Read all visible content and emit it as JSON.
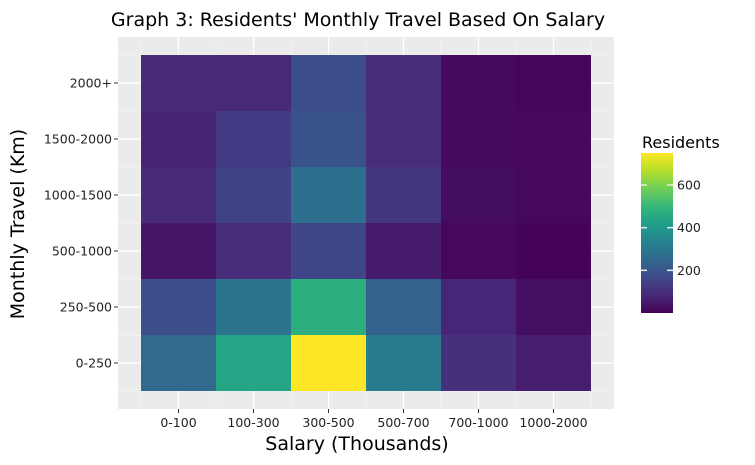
{
  "chart_data": {
    "type": "heatmap",
    "title": "Graph 3: Residents' Monthly Travel Based On Salary",
    "xlabel": "Salary (Thousands)",
    "ylabel": "Monthly Travel (Km)",
    "x_categories": [
      "0-100",
      "100-300",
      "300-500",
      "500-700",
      "700-1000",
      "1000-2000"
    ],
    "y_categories": [
      "0-250",
      "250-500",
      "500-1000",
      "1000-1500",
      "1500-2000",
      "2000+"
    ],
    "values": [
      [
        260,
        440,
        750,
        310,
        100,
        60
      ],
      [
        180,
        290,
        470,
        230,
        80,
        30
      ],
      [
        45,
        95,
        160,
        55,
        15,
        5
      ],
      [
        90,
        150,
        270,
        120,
        25,
        15
      ],
      [
        75,
        130,
        190,
        95,
        20,
        15
      ],
      [
        90,
        85,
        180,
        95,
        20,
        10
      ]
    ],
    "legend": {
      "title": "Residents",
      "ticks": [
        200,
        400,
        600
      ],
      "min": 0,
      "max": 750,
      "placement": "right"
    },
    "colormap": [
      "#440154",
      "#482878",
      "#3e4989",
      "#31688e",
      "#26828e",
      "#1f9e89",
      "#35b779",
      "#6ece58",
      "#b5de2b",
      "#fde725"
    ],
    "panel_background": "#ebebeb",
    "grid": true
  }
}
